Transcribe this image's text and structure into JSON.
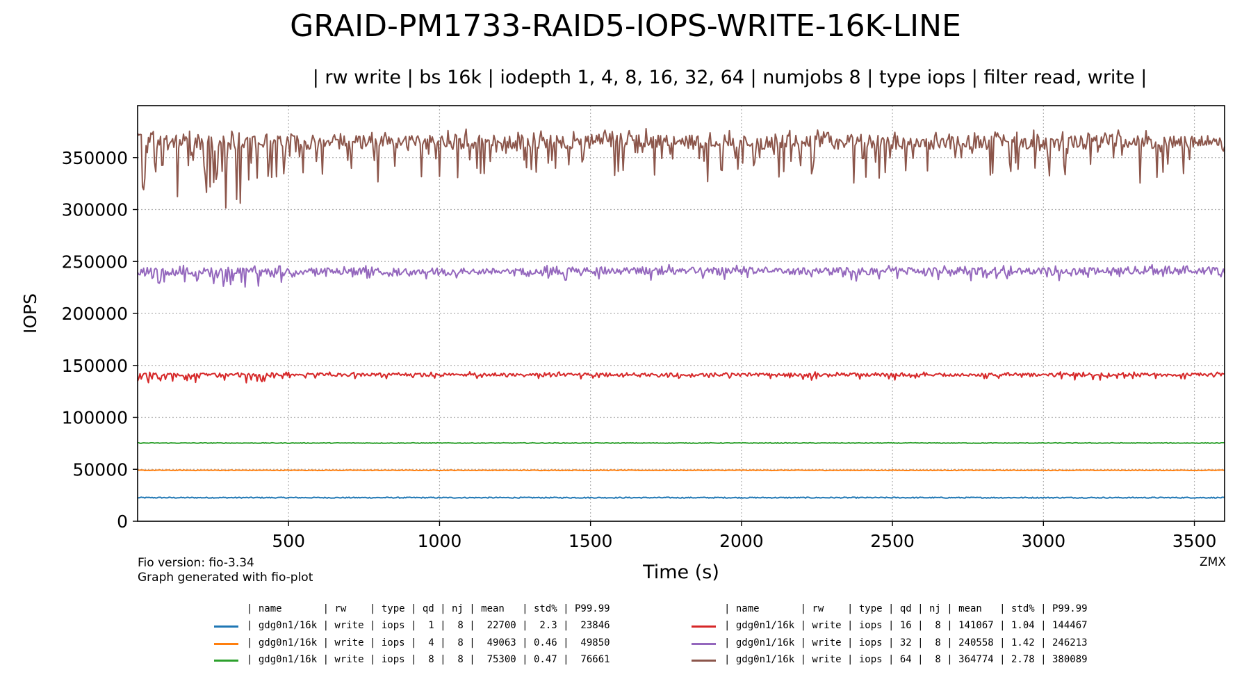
{
  "title": "GRAID-PM1733-RAID5-IOPS-WRITE-16K-LINE",
  "subtitle": "| rw write | bs 16k | iodepth 1, 4, 8, 16, 32, 64 | numjobs 8 | type iops | filter read, write |",
  "footer": {
    "left_line1": "Fio version: fio-3.34",
    "left_line2": "Graph generated with fio-plot",
    "right": "ZMX"
  },
  "legend": {
    "header": "| name       | rw    | type | qd | nj | mean   | std% | P99.99",
    "rows": [
      {
        "text": "| gdg0n1/16k | write | iops |  1 |  8 |  22700 |  2.3 |  23846",
        "color": "#1f77b4"
      },
      {
        "text": "| gdg0n1/16k | write | iops |  4 |  8 |  49063 | 0.46 |  49850",
        "color": "#ff7f0e"
      },
      {
        "text": "| gdg0n1/16k | write | iops |  8 |  8 |  75300 | 0.47 |  76661",
        "color": "#2ca02c"
      },
      {
        "text": "| gdg0n1/16k | write | iops | 16 |  8 | 141067 | 1.04 | 144467",
        "color": "#d62728"
      },
      {
        "text": "| gdg0n1/16k | write | iops | 32 |  8 | 240558 | 1.42 | 246213",
        "color": "#9467bd"
      },
      {
        "text": "| gdg0n1/16k | write | iops | 64 |  8 | 364774 | 2.78 | 380089",
        "color": "#8c564b"
      }
    ]
  },
  "chart_data": {
    "type": "line",
    "xlabel": "Time (s)",
    "ylabel": "IOPS",
    "xlim": [
      0,
      3600
    ],
    "ylim": [
      0,
      400000
    ],
    "xticks": [
      500,
      1000,
      1500,
      2000,
      2500,
      3000,
      3500
    ],
    "yticks": [
      0,
      50000,
      100000,
      150000,
      200000,
      250000,
      300000,
      350000
    ],
    "grid": true,
    "series": [
      {
        "qd": 1,
        "color": "#1f77b4",
        "mean": 22700,
        "noise": 500,
        "dips": 0,
        "x": [
          0,
          1800,
          3600
        ],
        "y": [
          22700,
          22700,
          22700
        ]
      },
      {
        "qd": 4,
        "color": "#ff7f0e",
        "mean": 49063,
        "noise": 300,
        "dips": 0,
        "x": [
          0,
          1800,
          3600
        ],
        "y": [
          49063,
          49063,
          49063
        ]
      },
      {
        "qd": 8,
        "color": "#2ca02c",
        "mean": 75300,
        "noise": 350,
        "dips": 0,
        "x": [
          0,
          1800,
          3600
        ],
        "y": [
          75300,
          75300,
          75300
        ]
      },
      {
        "qd": 16,
        "color": "#d62728",
        "mean": 141067,
        "noise": 1500,
        "dips": 4000,
        "x": [
          0,
          1800,
          3600
        ],
        "y": [
          141067,
          141067,
          141067
        ]
      },
      {
        "qd": 32,
        "color": "#9467bd",
        "mean": 240558,
        "noise": 3500,
        "dips": 8000,
        "x": [
          0,
          1800,
          3600
        ],
        "y": [
          240558,
          240558,
          240558
        ]
      },
      {
        "qd": 64,
        "color": "#8c564b",
        "mean": 364774,
        "noise": 7000,
        "dips": 35000,
        "x": [
          0,
          1800,
          3600
        ],
        "y": [
          364774,
          364774,
          364774
        ]
      }
    ]
  }
}
